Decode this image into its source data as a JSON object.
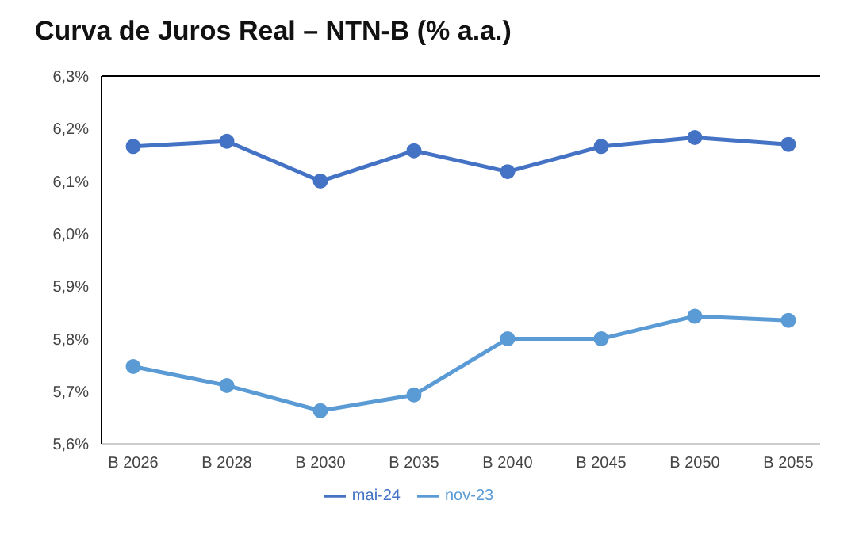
{
  "chart_data": {
    "type": "line",
    "title": "Curva de Juros Real – NTN-B (% a.a.)",
    "categories": [
      "B 2026",
      "B 2028",
      "B 2030",
      "B 2035",
      "B 2040",
      "B 2045",
      "B 2050",
      "B 2055"
    ],
    "series": [
      {
        "name": "mai-24",
        "color": "#4472c4",
        "values": [
          6.166,
          6.176,
          6.1,
          6.158,
          6.118,
          6.166,
          6.183,
          6.17
        ]
      },
      {
        "name": "nov-23",
        "color": "#5b9bd5",
        "values": [
          5.747,
          5.711,
          5.663,
          5.693,
          5.8,
          5.8,
          5.843,
          5.835
        ]
      }
    ],
    "ylim": [
      5.6,
      6.3
    ],
    "yticks": [
      {
        "value": 5.6,
        "label": "5,6%"
      },
      {
        "value": 5.7,
        "label": "5,7%"
      },
      {
        "value": 5.8,
        "label": "5,8%"
      },
      {
        "value": 5.9,
        "label": "5,9%"
      },
      {
        "value": 6.0,
        "label": "6,0%"
      },
      {
        "value": 6.1,
        "label": "6,1%"
      },
      {
        "value": 6.2,
        "label": "6,2%"
      },
      {
        "value": 6.3,
        "label": "6,3%"
      }
    ],
    "grid": false,
    "legend": "bottom",
    "marker": "circle",
    "line_style": "solid"
  }
}
